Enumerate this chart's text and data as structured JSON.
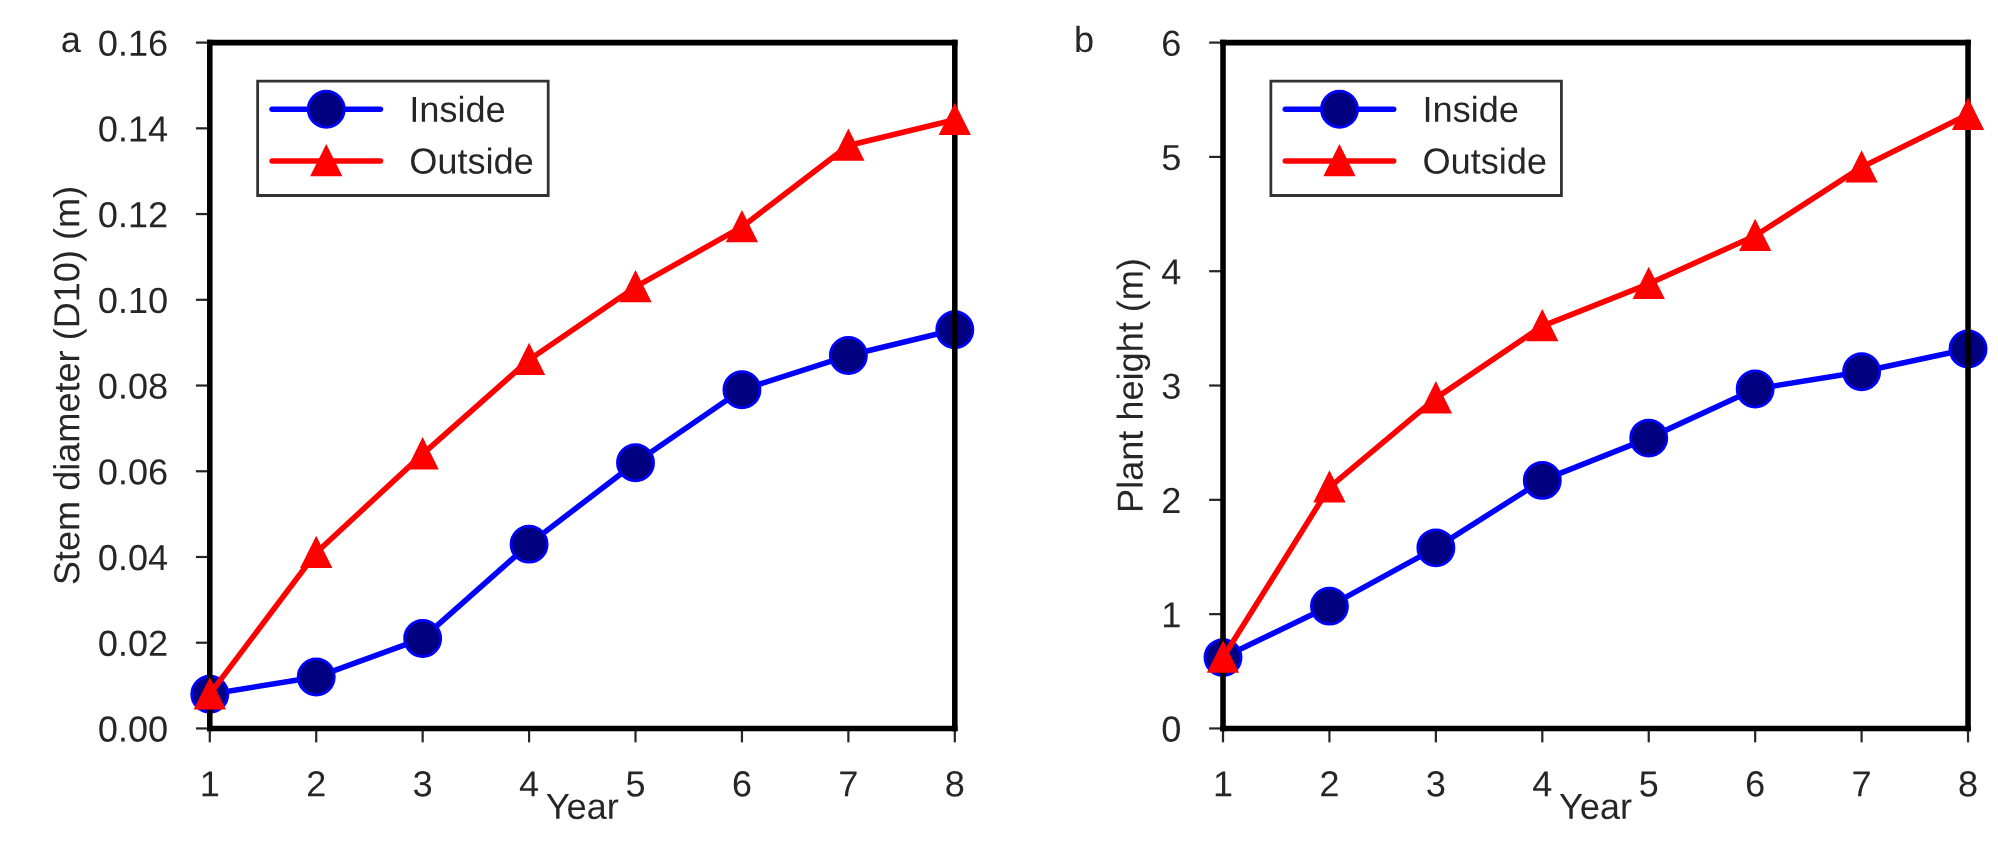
{
  "chart_data": [
    {
      "type": "line",
      "title": "a",
      "ylabel": "Stem diameter (D10) (m)",
      "xlabel": "Year",
      "x": [
        1,
        2,
        3,
        4,
        5,
        6,
        7,
        8
      ],
      "xlim": [
        1,
        8
      ],
      "xticks": [
        1,
        2,
        3,
        4,
        5,
        6,
        7,
        8
      ],
      "ylim": [
        0,
        0.16
      ],
      "yticks": [
        {
          "value": 0,
          "label": "0.00"
        },
        {
          "value": 0.02,
          "label": "0.02"
        },
        {
          "value": 0.04,
          "label": "0.04"
        },
        {
          "value": 0.06,
          "label": "0.06"
        },
        {
          "value": 0.08,
          "label": "0.08"
        },
        {
          "value": 0.1,
          "label": "0.10"
        },
        {
          "value": 0.12,
          "label": "0.12"
        },
        {
          "value": 0.14,
          "label": "0.14"
        },
        {
          "value": 0.16,
          "label": "0.16"
        }
      ],
      "grid": false,
      "legend": "top left",
      "line_style": "solid",
      "series": [
        {
          "name": "Inside",
          "color": "#0000ff",
          "marker": "circle",
          "values": [
            0.008,
            0.012,
            0.021,
            0.043,
            0.062,
            0.079,
            0.087,
            0.093
          ]
        },
        {
          "name": "Outside",
          "color": "#ff0000",
          "marker": "triangle",
          "values": [
            0.008,
            0.041,
            0.064,
            0.086,
            0.103,
            0.117,
            0.136,
            0.142
          ]
        }
      ]
    },
    {
      "type": "line",
      "title": "b",
      "ylabel": "Plant height (m)",
      "xlabel": "Year",
      "x": [
        1,
        2,
        3,
        4,
        5,
        6,
        7,
        8
      ],
      "xlim": [
        1,
        8
      ],
      "xticks": [
        1,
        2,
        3,
        4,
        5,
        6,
        7,
        8
      ],
      "ylim": [
        0,
        6
      ],
      "yticks": [
        0,
        1,
        2,
        3,
        4,
        5,
        6
      ],
      "grid": false,
      "legend": "top left",
      "line_style": "solid",
      "series": [
        {
          "name": "Inside",
          "color": "#0000ff",
          "marker": "circle",
          "values": [
            0.62,
            1.07,
            1.58,
            2.17,
            2.54,
            2.97,
            3.12,
            3.32
          ]
        },
        {
          "name": "Outside",
          "color": "#ff0000",
          "marker": "triangle",
          "values": [
            0.62,
            2.11,
            2.89,
            3.52,
            3.89,
            4.31,
            4.91,
            5.37
          ]
        }
      ]
    }
  ]
}
